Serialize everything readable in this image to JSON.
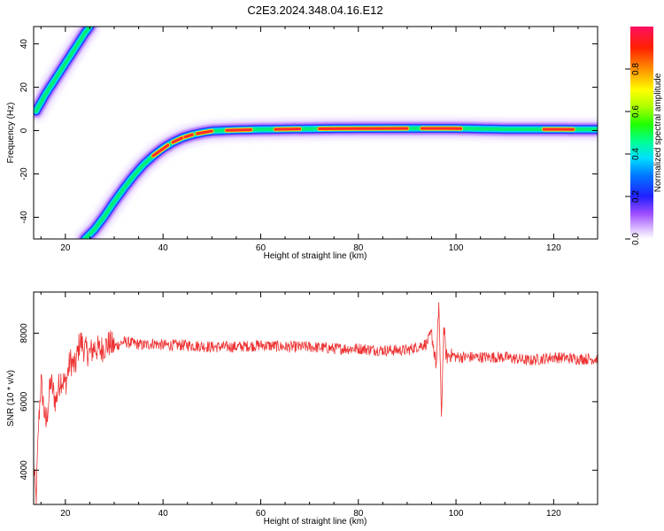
{
  "title": "C2E3.2024.348.04.16.E12",
  "colorbar": {
    "label": "Normalized spectral amplitude",
    "ticks": [
      "0.0",
      "0.2",
      "0.4",
      "0.6",
      "0.8"
    ],
    "tick_values": [
      0.0,
      0.2,
      0.4,
      0.6,
      0.8
    ]
  },
  "chart_data": [
    {
      "type": "heatmap",
      "xlabel": "Height of straight line (km)",
      "ylabel": "Frequency (Hz)",
      "xlim": [
        13.5,
        129
      ],
      "ylim": [
        -50,
        48
      ],
      "xticks": [
        20,
        40,
        60,
        80,
        100,
        120
      ],
      "yticks": [
        -40,
        -20,
        0,
        20,
        40
      ],
      "grid": false,
      "ridges": [
        {
          "name": "",
          "x": [
            14,
            16,
            18,
            20,
            22,
            24,
            25
          ],
          "y": [
            9,
            17,
            24,
            31,
            38,
            45,
            48
          ]
        },
        {
          "name": "",
          "x": [
            24,
            26,
            28,
            30,
            32,
            34,
            36,
            38,
            40,
            42,
            44,
            46,
            48,
            50,
            54,
            60,
            70,
            80,
            90,
            100,
            110,
            120,
            129
          ],
          "y": [
            -50,
            -45.5,
            -39.5,
            -32.8,
            -26.6,
            -20.8,
            -15.7,
            -11.6,
            -8.1,
            -5.4,
            -3.3,
            -1.9,
            -0.9,
            -0.2,
            0.2,
            0.5,
            0.8,
            1,
            1,
            1,
            0.6,
            0.6,
            0.5
          ]
        }
      ]
    },
    {
      "type": "line",
      "xlabel": "Height of straight line (km)",
      "ylabel": "SNR (10 * v/v)",
      "xlim": [
        13.5,
        129
      ],
      "ylim": [
        3000,
        9200
      ],
      "xticks": [
        20,
        40,
        60,
        80,
        100,
        120
      ],
      "yticks": [
        4000,
        6000,
        8000
      ],
      "grid": false,
      "series": [
        {
          "name": "",
          "color": "#ee3333",
          "x": [
            13.5,
            14,
            14.5,
            15,
            16,
            17,
            18,
            19,
            20,
            21,
            22,
            23,
            24,
            25,
            26,
            27,
            28,
            29,
            30,
            32,
            34,
            36,
            38,
            40,
            45,
            50,
            55,
            60,
            65,
            70,
            75,
            80,
            85,
            90,
            92,
            94,
            95,
            96,
            96.5,
            97,
            97.5,
            98,
            99,
            100,
            105,
            110,
            115,
            120,
            125,
            129
          ],
          "y": [
            4200,
            3100,
            5300,
            6600,
            5300,
            6600,
            6000,
            6700,
            6500,
            7200,
            7000,
            7800,
            7500,
            7400,
            7600,
            7500,
            7600,
            7700,
            7600,
            7750,
            7700,
            7650,
            7700,
            7650,
            7650,
            7600,
            7600,
            7650,
            7600,
            7600,
            7550,
            7550,
            7500,
            7500,
            7600,
            7700,
            8000,
            7000,
            9000,
            5500,
            8200,
            7300,
            7400,
            7300,
            7300,
            7300,
            7200,
            7300,
            7250,
            7250
          ]
        }
      ]
    }
  ]
}
